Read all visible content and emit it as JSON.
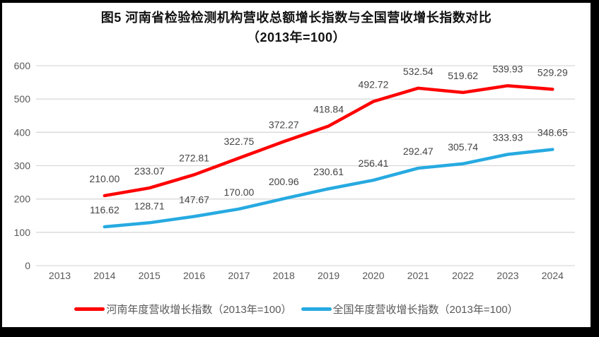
{
  "title": {
    "line1": "图5  河南省检验检测机构营收总额增长指数与全国营收增长指数对比",
    "line2": "（2013年=100）"
  },
  "chart_data": {
    "type": "line",
    "categories": [
      "2013",
      "2014",
      "2015",
      "2016",
      "2017",
      "2018",
      "2019",
      "2020",
      "2021",
      "2022",
      "2023",
      "2024"
    ],
    "series": [
      {
        "name": "河南年度营收增长指数（2013年=100）",
        "color": "#FE0000",
        "values": [
          null,
          210.0,
          233.07,
          272.81,
          322.75,
          372.27,
          418.84,
          492.72,
          532.54,
          519.62,
          539.93,
          529.29
        ]
      },
      {
        "name": "全国年度营收增长指数（2013年=100）",
        "color": "#27AAE1",
        "values": [
          null,
          116.62,
          128.71,
          147.67,
          170.0,
          200.96,
          230.61,
          256.41,
          292.47,
          305.74,
          333.93,
          348.65
        ]
      }
    ],
    "ylim": [
      0,
      600
    ],
    "ytick_step": 100,
    "yticks": [
      "0",
      "100",
      "200",
      "300",
      "400",
      "500",
      "600"
    ],
    "grid": true,
    "legend_position": "bottom",
    "data_labels": true,
    "label_decimals": 2,
    "gridline_color": "#D9D9D9",
    "axis_text_color": "#595959",
    "data_label_color": "#444444"
  }
}
